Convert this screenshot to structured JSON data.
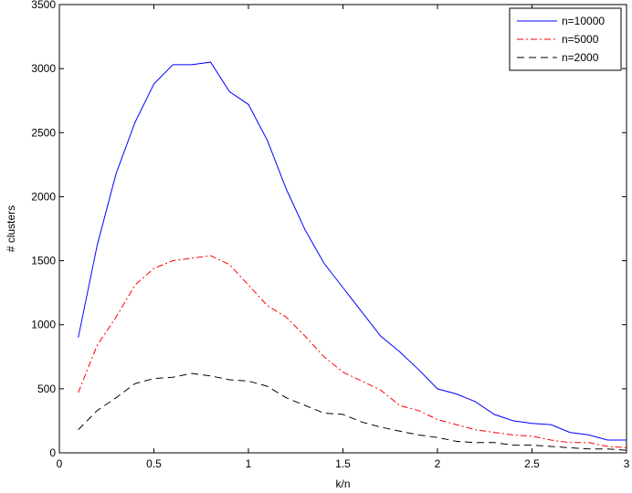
{
  "chart_data": {
    "type": "line",
    "title": "",
    "xlabel": "k/n",
    "ylabel": "# clusters",
    "xlim": [
      0,
      3
    ],
    "ylim": [
      0,
      3500
    ],
    "xticks": [
      0,
      0.5,
      1,
      1.5,
      2,
      2.5,
      3
    ],
    "xtick_labels": [
      "0",
      "0.5",
      "1",
      "1.5",
      "2",
      "2.5",
      "3"
    ],
    "yticks": [
      0,
      500,
      1000,
      1500,
      2000,
      2500,
      3000,
      3500
    ],
    "ytick_labels": [
      "0",
      "500",
      "1000",
      "1500",
      "2000",
      "2500",
      "3000",
      "3500"
    ],
    "grid": false,
    "legend_position": "top-right",
    "x": [
      0.1,
      0.2,
      0.3,
      0.4,
      0.5,
      0.6,
      0.7,
      0.8,
      0.9,
      1.0,
      1.1,
      1.2,
      1.3,
      1.4,
      1.5,
      1.6,
      1.7,
      1.8,
      1.9,
      2.0,
      2.1,
      2.2,
      2.3,
      2.4,
      2.5,
      2.6,
      2.7,
      2.8,
      2.9,
      3.0
    ],
    "series": [
      {
        "name": "n=10000",
        "color": "#0000ff",
        "dash": "solid",
        "values": [
          900,
          1620,
          2180,
          2580,
          2880,
          3030,
          3030,
          3050,
          2820,
          2720,
          2440,
          2060,
          1740,
          1480,
          1290,
          1100,
          910,
          790,
          650,
          500,
          460,
          400,
          300,
          250,
          230,
          220,
          160,
          140,
          100,
          100
        ]
      },
      {
        "name": "n=5000",
        "color": "#ff0000",
        "dash": "dashdot",
        "values": [
          470,
          840,
          1060,
          1310,
          1440,
          1500,
          1520,
          1540,
          1470,
          1310,
          1150,
          1060,
          910,
          750,
          630,
          560,
          490,
          370,
          330,
          260,
          220,
          180,
          160,
          140,
          130,
          100,
          80,
          80,
          50,
          40
        ]
      },
      {
        "name": "n=2000",
        "color": "#000000",
        "dash": "dashed",
        "values": [
          180,
          330,
          430,
          540,
          580,
          590,
          620,
          600,
          570,
          560,
          520,
          430,
          370,
          310,
          300,
          240,
          200,
          170,
          140,
          120,
          90,
          80,
          80,
          60,
          60,
          50,
          40,
          30,
          30,
          20
        ]
      }
    ]
  }
}
